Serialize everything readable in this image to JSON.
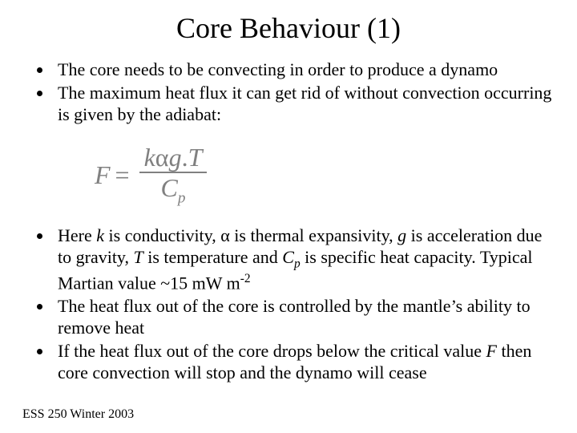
{
  "title": "Core Behaviour (1)",
  "bullets_top": [
    "The core needs to be convecting in order to produce a dynamo",
    "The maximum heat flux it can get rid of without convection occurring is given by the adiabat:"
  ],
  "equation": {
    "lhs": "F",
    "eq": "=",
    "num_k": "k",
    "num_alpha": "α",
    "num_g": "g",
    "num_dot": ".",
    "num_T": "T",
    "den_C": "C",
    "den_p": "p",
    "color": "#808080",
    "fontsize": 32
  },
  "b3_pre": "Here ",
  "b3_k": "k",
  "b3_t1": " is conductivity, ",
  "b3_alpha": "α",
  "b3_t2": " is thermal expansivity, ",
  "b3_g": "g",
  "b3_t3": " is acceleration due to gravity, ",
  "b3_T": "T",
  "b3_t4": " is temperature and ",
  "b3_C": "C",
  "b3_p": "p",
  "b3_t5": " is specific heat capacity. Typical Martian value ~15 mW m",
  "b3_exp": "-2",
  "b4": "The heat flux out of the core is controlled by the mantle’s ability to remove heat",
  "b5_t1": "If the heat flux out of the core drops below the critical value ",
  "b5_F": "F",
  "b5_t2": " then core convection will stop and the dynamo will cease",
  "footer": "ESS 250 Winter 2003"
}
